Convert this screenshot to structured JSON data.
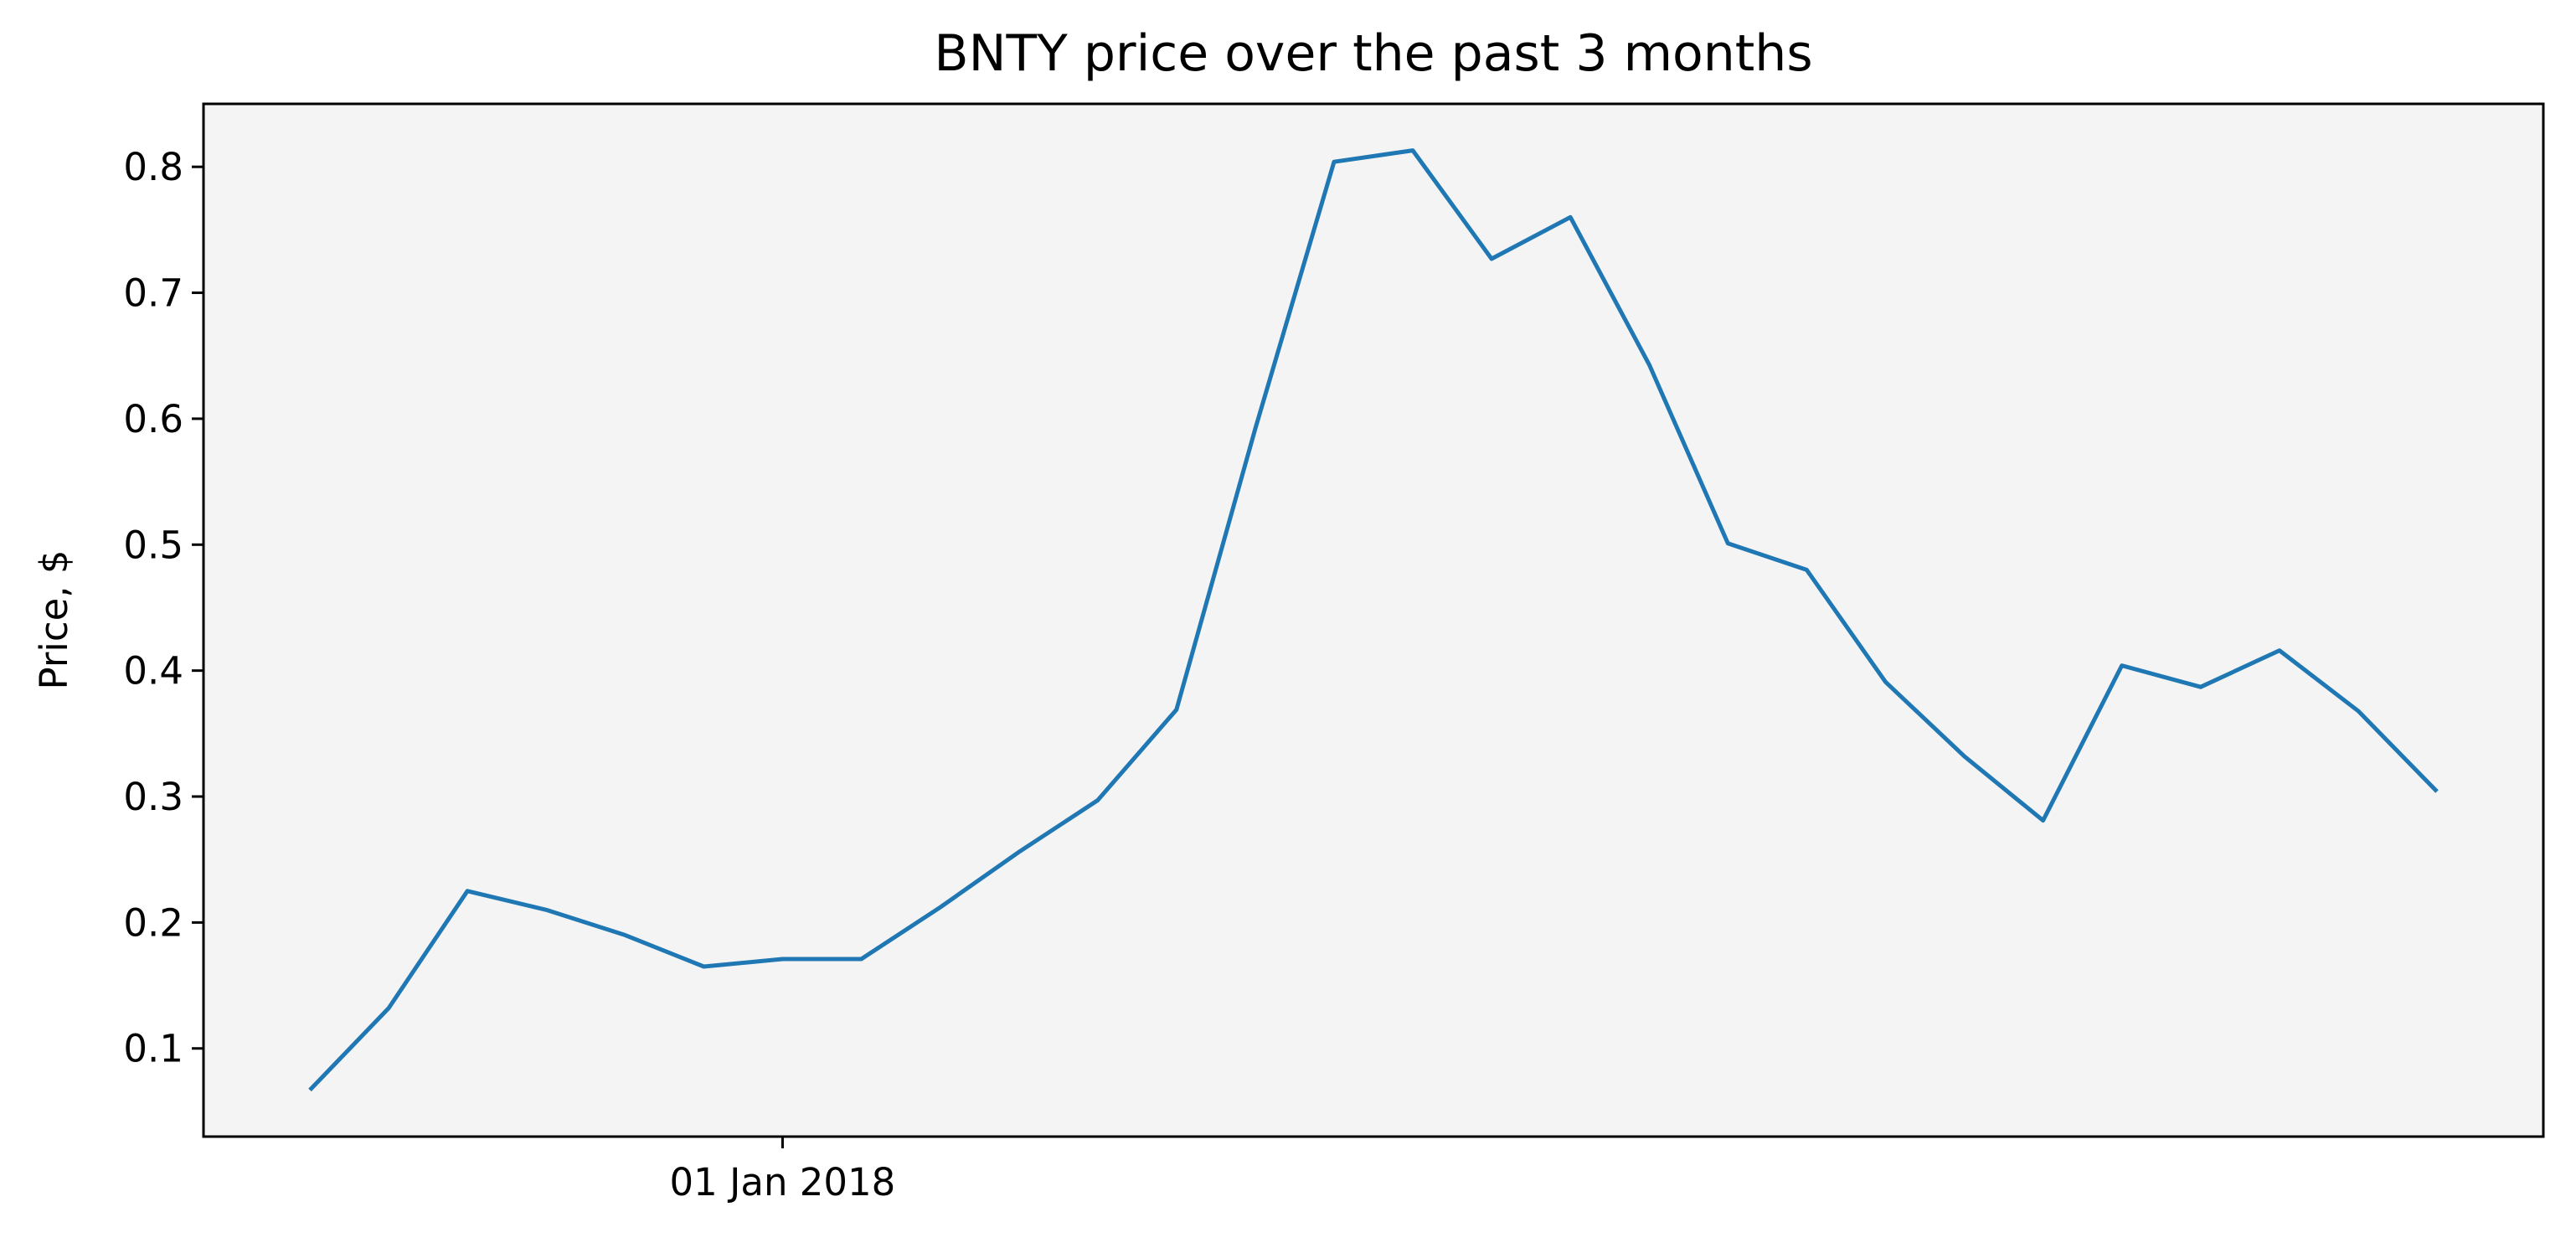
{
  "chart_data": {
    "type": "line",
    "title": "BNTY price over the past 3 months",
    "xlabel": "",
    "ylabel": "Price, $",
    "x_ticks": [
      {
        "label": "01 Jan 2018",
        "week": 6
      }
    ],
    "y_ticks": [
      "0.1",
      "0.2",
      "0.3",
      "0.4",
      "0.5",
      "0.6",
      "0.7",
      "0.8"
    ],
    "ylim": [
      0.03,
      0.85
    ],
    "grid": false,
    "background": "#f4f4f4",
    "line_color": "#1f77b4",
    "x_unit": "weekly points",
    "series": [
      {
        "values": [
          0.067,
          0.132,
          0.225,
          0.21,
          0.19,
          0.165,
          0.171,
          0.171,
          0.212,
          0.256,
          0.297,
          0.369,
          0.592,
          0.804,
          0.813,
          0.727,
          0.76,
          0.643,
          0.501,
          0.48,
          0.391,
          0.332,
          0.281,
          0.404,
          0.387,
          0.416,
          0.368,
          0.304
        ]
      }
    ]
  }
}
